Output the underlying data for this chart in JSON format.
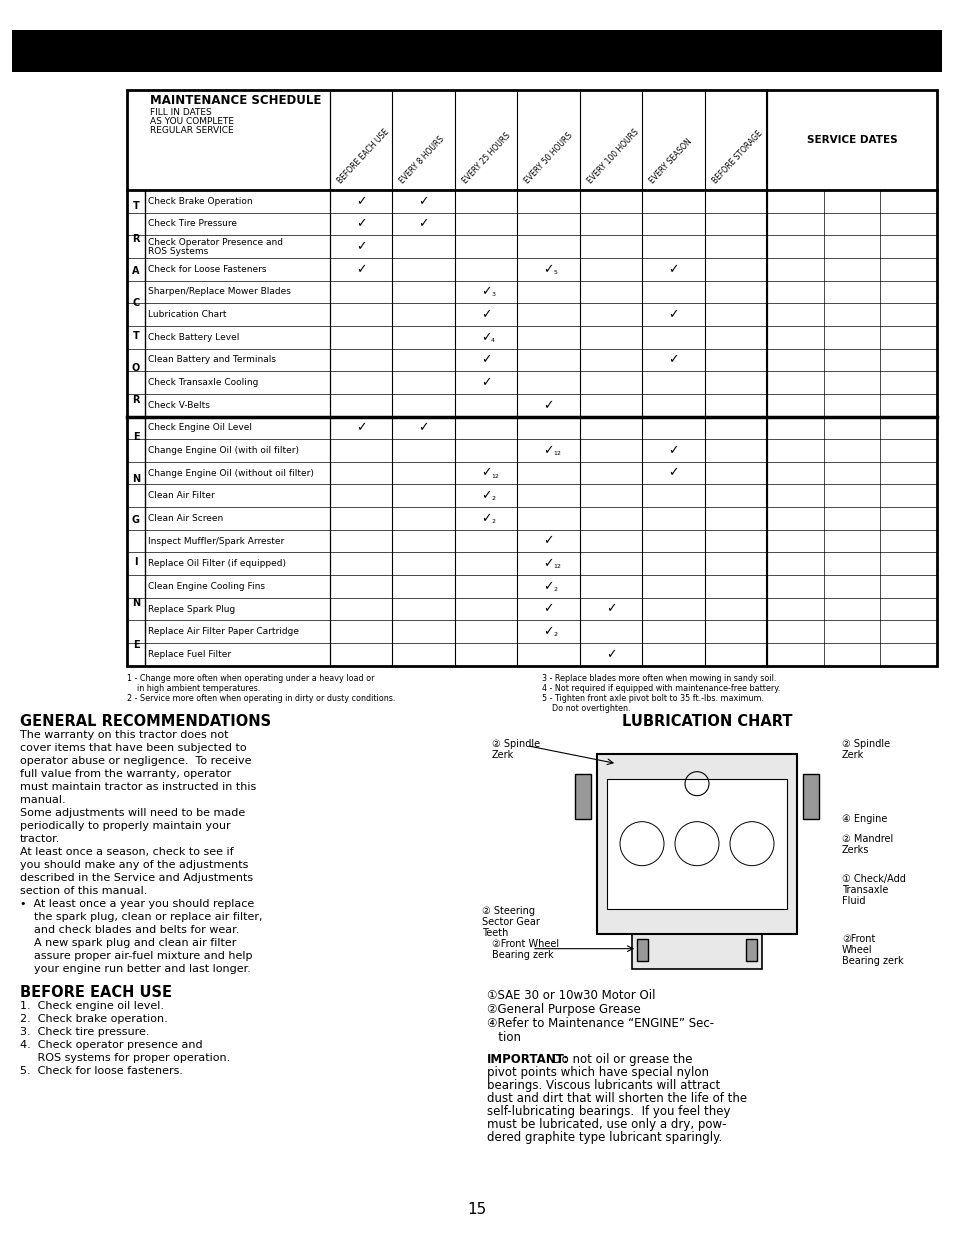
{
  "title": "MAINTENANCE",
  "page_bg": "#ffffff",
  "page_number": "15",
  "schedule_title": "MAINTENANCE SCHEDULE",
  "schedule_sub1": "FILL IN DATES",
  "schedule_sub2": "AS YOU COMPLETE",
  "schedule_sub3": "REGULAR SERVICE",
  "service_dates_label": "SERVICE DATES",
  "col_headers": [
    "BEFORE EACH USE",
    "EVERY 8 HOURS",
    "EVERY 25 HOURS",
    "EVERY 50 HOURS",
    "EVERY 100 HOURS",
    "EVERY SEASON",
    "BEFORE STORAGE"
  ],
  "tractor_rows": [
    "Check Brake Operation",
    "Check Tire Pressure",
    "Check Operator Presence and\nROS Systems",
    "Check for Loose Fasteners",
    "Sharpen/Replace Mower Blades",
    "Lubrication Chart",
    "Check Battery Level",
    "Clean Battery and Terminals",
    "Check Transaxle Cooling",
    "Check V-Belts"
  ],
  "engine_rows": [
    "Check Engine Oil Level",
    "Change Engine Oil (with oil filter)",
    "Change Engine Oil (without oil filter)",
    "Clean Air Filter",
    "Clean Air Screen",
    "Inspect Muffler/Spark Arrester",
    "Replace Oil Filter (if equipped)",
    "Clean Engine Cooling Fins",
    "Replace Spark Plug",
    "Replace Air Filter Paper Cartridge",
    "Replace Fuel Filter"
  ],
  "tractor_checks": [
    [
      1,
      1,
      0,
      0,
      0,
      0,
      0
    ],
    [
      1,
      1,
      0,
      0,
      0,
      0,
      0
    ],
    [
      1,
      0,
      0,
      0,
      0,
      0,
      0
    ],
    [
      1,
      0,
      0,
      "5",
      0,
      "v",
      0
    ],
    [
      0,
      0,
      "3",
      0,
      0,
      0,
      0
    ],
    [
      0,
      0,
      1,
      0,
      0,
      "v",
      0
    ],
    [
      0,
      0,
      "4",
      0,
      0,
      0,
      0
    ],
    [
      0,
      0,
      1,
      0,
      0,
      "v",
      0
    ],
    [
      0,
      0,
      1,
      0,
      0,
      0,
      0
    ],
    [
      0,
      0,
      0,
      1,
      0,
      0,
      0
    ]
  ],
  "engine_checks": [
    [
      1,
      1,
      0,
      0,
      0,
      0,
      0
    ],
    [
      0,
      0,
      0,
      "12",
      0,
      "v",
      0
    ],
    [
      0,
      0,
      "12",
      0,
      0,
      "v",
      0
    ],
    [
      0,
      0,
      "2",
      0,
      0,
      0,
      0
    ],
    [
      0,
      0,
      "2",
      0,
      0,
      0,
      0
    ],
    [
      0,
      0,
      0,
      1,
      0,
      0,
      0
    ],
    [
      0,
      0,
      0,
      "12",
      0,
      0,
      0
    ],
    [
      0,
      0,
      0,
      "2",
      0,
      0,
      0
    ],
    [
      0,
      0,
      0,
      1,
      1,
      0,
      0
    ],
    [
      0,
      0,
      0,
      "2",
      0,
      0,
      0
    ],
    [
      0,
      0,
      0,
      0,
      1,
      0,
      0
    ]
  ],
  "tractor_label_chars": [
    "T",
    "R",
    "A",
    "C",
    "T",
    "O",
    "R"
  ],
  "engine_label_chars": [
    "E",
    "N",
    "G",
    "I",
    "N",
    "E"
  ],
  "footnotes_left": [
    "1 - Change more often when operating under a heavy load or",
    "    in high ambient temperatures.",
    "2 - Service more often when operating in dirty or dusty conditions."
  ],
  "footnotes_right": [
    "3 - Replace blades more often when mowing in sandy soil.",
    "4 - Not required if equipped with maintenance-free battery.",
    "5 - Tighten front axle pivot bolt to 35 ft.-lbs. maximum.",
    "    Do not overtighten."
  ],
  "general_rec_title": "GENERAL RECOMMENDATIONS",
  "general_rec_lines": [
    "The warranty on this tractor does not",
    "cover items that have been subjected to",
    "operator abuse or negligence.  To receive",
    "full value from the warranty, operator",
    "must maintain tractor as instructed in this",
    "manual.",
    "Some adjustments will need to be made",
    "periodically to properly maintain your",
    "tractor.",
    "At least once a season, check to see if",
    "you should make any of the adjustments",
    "described in the Service and Adjustments",
    "section of this manual.",
    "•  At least once a year you should replace",
    "    the spark plug, clean or replace air filter,",
    "    and check blades and belts for wear.",
    "    A new spark plug and clean air filter",
    "    assure proper air-fuel mixture and help",
    "    your engine run better and last longer."
  ],
  "before_each_use_title": "BEFORE EACH USE",
  "before_each_use_lines": [
    "1.  Check engine oil level.",
    "2.  Check brake operation.",
    "3.  Check tire pressure.",
    "4.  Check operator presence and",
    "     ROS systems for proper operation.",
    "5.  Check for loose fasteners."
  ],
  "lub_chart_title": "LUBRICATION CHART",
  "lub_notes_lines": [
    "①SAE 30 or 10w30 Motor Oil",
    "②General Purpose Grease",
    "④Refer to Maintenance “ENGINE” Sec-",
    "   tion"
  ],
  "important_lines": [
    "IMPORTANT:  Do not oil or grease the",
    "pivot points which have special nylon",
    "bearings. Viscous lubricants will attract",
    "dust and dirt that will shorten the life of the",
    "self-lubricating bearings.  If you feel they",
    "must be lubricated, use only a dry, pow-",
    "dered graphite type lubricant sparingly."
  ]
}
